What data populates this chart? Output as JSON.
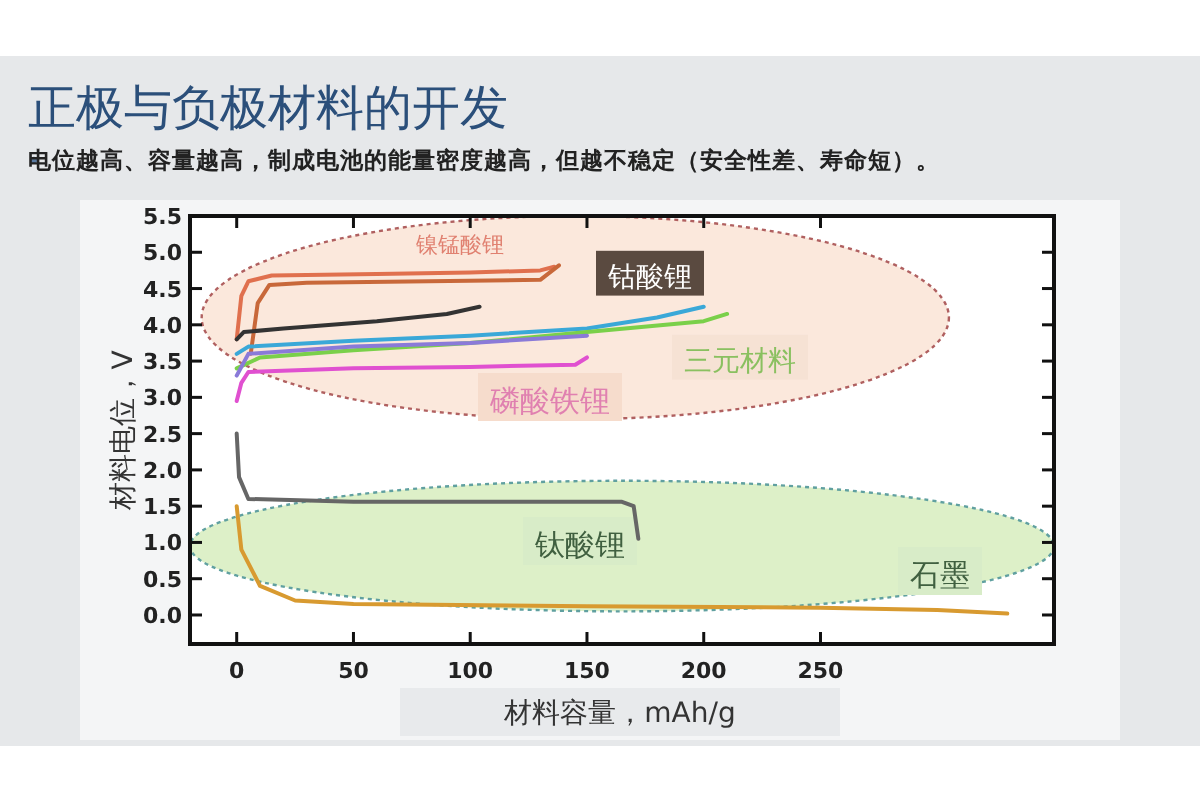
{
  "chart_data": {
    "type": "line",
    "title": "正极与负极材料的开发",
    "subtitle": "电位越高、容量越高，制成电池的能量密度越高，但越不稳定（安全性差、寿命短）。",
    "xlabel": "材料容量，mAh/g",
    "ylabel": "材料电位，V",
    "xlim": [
      -20,
      350
    ],
    "ylim": [
      -0.4,
      5.5
    ],
    "xticks": [
      0,
      50,
      100,
      150,
      200,
      250
    ],
    "yticks": [
      {
        "value": 0,
        "label": "0.0"
      },
      {
        "value": 0.5,
        "label": "0.5"
      },
      {
        "value": 1,
        "label": "1.0"
      },
      {
        "value": 1.5,
        "label": "1.5"
      },
      {
        "value": 2,
        "label": "2.0"
      },
      {
        "value": 2.5,
        "label": "2.5"
      },
      {
        "value": 3,
        "label": "3.0"
      },
      {
        "value": 3.5,
        "label": "3.5"
      },
      {
        "value": 4,
        "label": "4.0"
      },
      {
        "value": 4.5,
        "label": "4.5"
      },
      {
        "value": 5,
        "label": "5.0"
      },
      {
        "value": 5.5,
        "label": "5.5"
      }
    ],
    "grid": false,
    "marker": "none",
    "line_style": "solid",
    "series": [
      {
        "color": "#e0704e",
        "x": [
          0,
          2,
          5,
          15,
          60,
          100,
          130,
          136
        ],
        "values": [
          3.8,
          4.4,
          4.6,
          4.68,
          4.7,
          4.72,
          4.75,
          4.8
        ]
      },
      {
        "color": "#c8683a",
        "x": [
          6,
          9,
          14,
          30,
          130,
          138
        ],
        "values": [
          3.6,
          4.3,
          4.55,
          4.58,
          4.62,
          4.82
        ]
      },
      {
        "color": "#333333",
        "x": [
          0,
          3,
          20,
          60,
          90,
          104
        ],
        "values": [
          3.8,
          3.9,
          3.95,
          4.05,
          4.15,
          4.25
        ]
      },
      {
        "color": "#3aa8d8",
        "x": [
          0,
          5,
          50,
          100,
          150,
          180,
          200
        ],
        "values": [
          3.6,
          3.7,
          3.78,
          3.85,
          3.95,
          4.1,
          4.25
        ]
      },
      {
        "color": "#7ad04a",
        "x": [
          0,
          10,
          50,
          100,
          150,
          200,
          210
        ],
        "values": [
          3.4,
          3.55,
          3.65,
          3.75,
          3.9,
          4.05,
          4.15
        ]
      },
      {
        "color": "#8a7ad8",
        "x": [
          0,
          5,
          50,
          100,
          150
        ],
        "values": [
          3.3,
          3.6,
          3.7,
          3.75,
          3.85
        ]
      },
      {
        "color": "#e050d0",
        "x": [
          0,
          2,
          5,
          50,
          100,
          145,
          150
        ],
        "values": [
          2.95,
          3.2,
          3.35,
          3.4,
          3.42,
          3.45,
          3.55
        ]
      },
      {
        "color": "#666666",
        "x": [
          0,
          1,
          5,
          50,
          100,
          165,
          170,
          172
        ],
        "values": [
          2.5,
          1.9,
          1.6,
          1.56,
          1.56,
          1.56,
          1.5,
          1.05
        ]
      },
      {
        "color": "#d89a30",
        "x": [
          0,
          2,
          10,
          25,
          50,
          150,
          250,
          300,
          330
        ],
        "values": [
          1.5,
          0.9,
          0.4,
          0.2,
          0.15,
          0.12,
          0.1,
          0.07,
          0.02
        ]
      }
    ],
    "annotations": [
      "镍锰酸锂",
      "钴酸锂",
      "三元材料",
      "磷酸铁锂",
      "钛酸锂",
      "石墨"
    ]
  }
}
